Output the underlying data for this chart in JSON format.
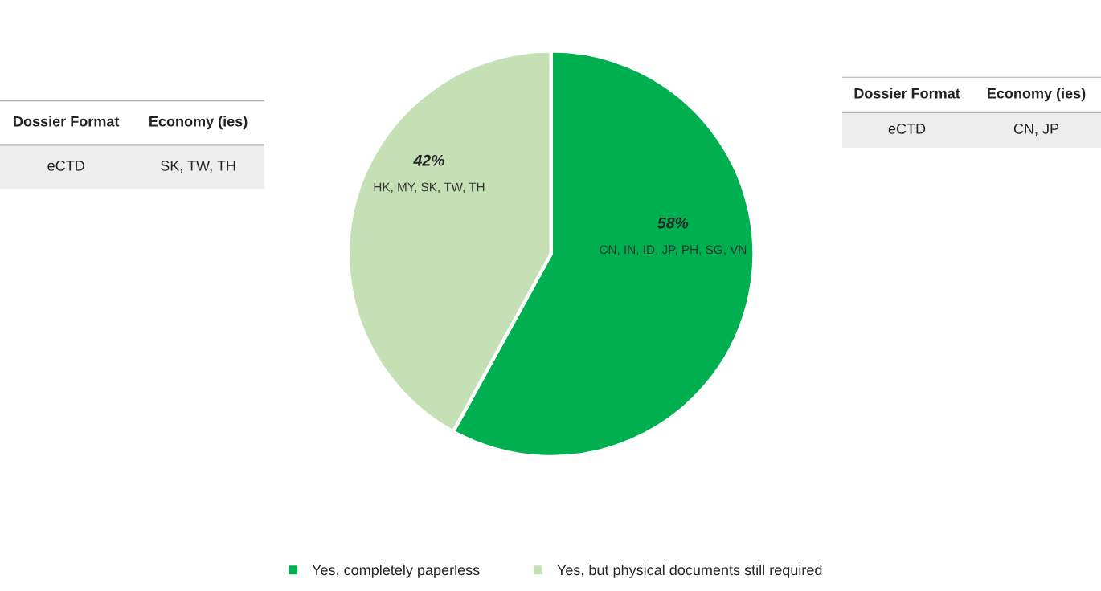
{
  "chart_data": [
    {
      "type": "other",
      "annotations": [
        "Dossier Format",
        "Economy (ies)",
        "eCTD",
        "SK, TW, TH"
      ]
    },
    {
      "type": "pie",
      "categories": [
        "Yes, completely paperless",
        "Yes, but physical documents still required"
      ],
      "values": [
        58,
        42
      ],
      "colors": [
        "#00b050",
        "#c5e0b4"
      ],
      "value_labels": [
        "58%",
        "42%"
      ],
      "legend": "bottom",
      "annotations": [
        "CN, IN, ID, JP, PH, SG, VN",
        "HK, MY, SK, TW, TH"
      ]
    },
    {
      "type": "other",
      "annotations": [
        "Dossier Format",
        "Economy (ies)",
        "eCTD",
        "CN, JP"
      ]
    }
  ]
}
